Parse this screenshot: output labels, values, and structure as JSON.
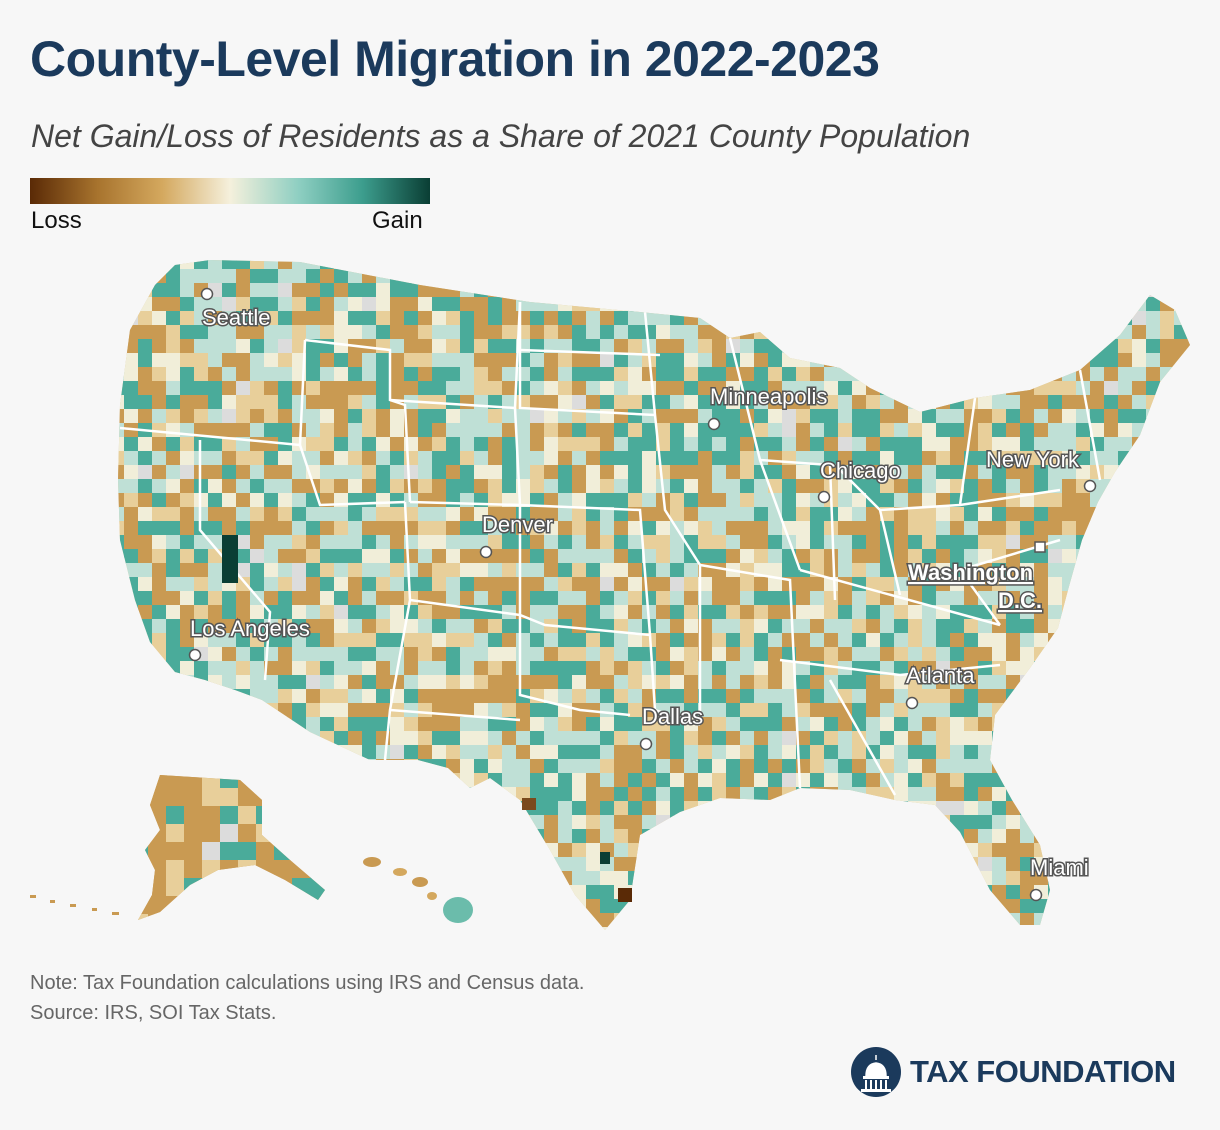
{
  "header": {
    "title": "County-Level Migration in 2022-2023",
    "subtitle": "Net Gain/Loss of Residents as a Share of 2021 County Population"
  },
  "legend": {
    "low_label": "Loss",
    "high_label": "Gain",
    "colors": [
      "#5a2a06",
      "#a8742e",
      "#d4a85e",
      "#f5f0dc",
      "#8fcfc2",
      "#3d9e8e",
      "#0a3e34"
    ]
  },
  "map": {
    "colors": {
      "dark_loss": "#5a2a06",
      "loss": "#c99a52",
      "mild_loss": "#e8cf9a",
      "neutral": "#f1eed9",
      "mild_gain": "#bfe0d6",
      "gain": "#4aab9a",
      "dark_gain": "#0a3e34",
      "no_data": "#dcdcdc",
      "state_border": "#ffffff"
    },
    "cities": [
      {
        "name": "Seattle"
      },
      {
        "name": "Minneapolis"
      },
      {
        "name": "Chicago"
      },
      {
        "name": "New York"
      },
      {
        "name": "Denver"
      },
      {
        "name": "Washington"
      },
      {
        "name": "D.C."
      },
      {
        "name": "Los Angeles"
      },
      {
        "name": "Atlanta"
      },
      {
        "name": "Dallas"
      },
      {
        "name": "Miami"
      }
    ]
  },
  "footer": {
    "note": "Note: Tax Foundation calculations using IRS and Census data.",
    "source": "Source: IRS, SOI Tax Stats.",
    "brand": "TAX FOUNDATION"
  }
}
